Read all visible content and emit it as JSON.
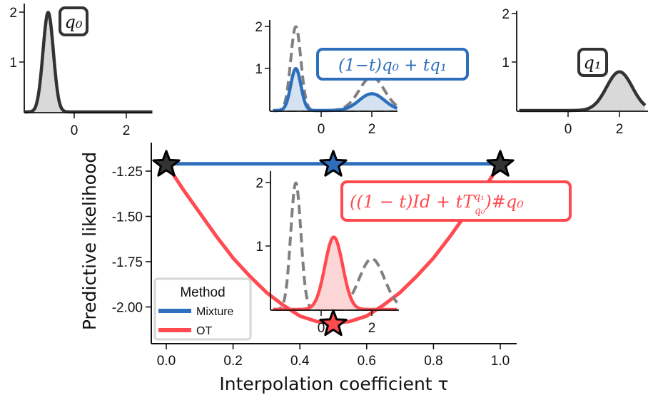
{
  "colors": {
    "mixture": "#2e6fbd",
    "ot": "#ff4a50",
    "dark": "#333333",
    "dashed": "#808080",
    "gray_fill": "#d9d9d9",
    "blue_fill": "#d5e2f1",
    "red_fill": "#fcd6d7"
  },
  "chart_data": [
    {
      "type": "line",
      "xlabel": "Interpolation coefficient τ",
      "ylabel": "Predictive likelihood",
      "xlim": [
        -0.04,
        1.05
      ],
      "ylim": [
        -2.2,
        -1.12
      ],
      "xticks": [
        "0.0",
        "0.2",
        "0.4",
        "0.6",
        "0.8",
        "1.0"
      ],
      "yticks": [
        "-1.25",
        "-1.50",
        "-1.75",
        "-2.00"
      ],
      "ytick_values": [
        -1.25,
        -1.5,
        -1.75,
        -2.0
      ],
      "grid": false,
      "legend": {
        "title": "Method",
        "placement": "bottom-left",
        "entries": [
          "Mixture",
          "OT"
        ]
      },
      "x": [
        0,
        0.05,
        0.1,
        0.15,
        0.2,
        0.25,
        0.3,
        0.35,
        0.4,
        0.45,
        0.5,
        0.55,
        0.6,
        0.65,
        0.7,
        0.75,
        0.8,
        0.85,
        0.9,
        0.95,
        1.0
      ],
      "series": [
        {
          "name": "Mixture",
          "values": [
            -1.21,
            -1.21,
            -1.21,
            -1.21,
            -1.21,
            -1.21,
            -1.21,
            -1.21,
            -1.21,
            -1.21,
            -1.21,
            -1.21,
            -1.21,
            -1.21,
            -1.21,
            -1.21,
            -1.21,
            -1.21,
            -1.21,
            -1.21,
            -1.21
          ]
        },
        {
          "name": "OT",
          "values": [
            -1.21,
            -1.35,
            -1.48,
            -1.61,
            -1.73,
            -1.83,
            -1.92,
            -1.99,
            -2.05,
            -2.08,
            -2.09,
            -2.08,
            -2.05,
            -1.99,
            -1.92,
            -1.83,
            -1.73,
            -1.61,
            -1.48,
            -1.35,
            -1.21
          ]
        }
      ],
      "star_markers": [
        {
          "x": 0,
          "y": -1.21,
          "color": "dark"
        },
        {
          "x": 0.5,
          "y": -1.21,
          "color": "mixture"
        },
        {
          "x": 1,
          "y": -1.21,
          "color": "dark"
        },
        {
          "x": 0.5,
          "y": -2.09,
          "color": "ot"
        }
      ]
    },
    {
      "type": "line",
      "inset": "q0",
      "label": "q₀",
      "xticks": [
        "0",
        "2"
      ],
      "yticks": [
        "1",
        "2"
      ],
      "xlim": [
        -1.9,
        3.0
      ],
      "ylim": [
        0,
        2.1
      ],
      "densities": [
        {
          "kind": "normal",
          "mean": -1.0,
          "std": 0.2,
          "weight": 1.0,
          "style": "solid",
          "color": "dark"
        }
      ]
    },
    {
      "type": "line",
      "inset": "mixture",
      "label": "(1−t)q₀ + tq₁",
      "xticks": [
        "0",
        "2"
      ],
      "yticks": [
        "1",
        "2"
      ],
      "xlim": [
        -1.9,
        3.0
      ],
      "ylim": [
        0,
        2.1
      ],
      "densities": [
        {
          "kind": "normal",
          "mean": -1.0,
          "std": 0.2,
          "weight": 1.0,
          "style": "dashed",
          "color": "dashed"
        },
        {
          "kind": "normal",
          "mean": 2.0,
          "std": 0.5,
          "weight": 1.0,
          "style": "dashed",
          "color": "dashed"
        },
        {
          "kind": "mixture",
          "components": [
            {
              "mean": -1.0,
              "std": 0.2,
              "weight": 0.5
            },
            {
              "mean": 2.0,
              "std": 0.5,
              "weight": 0.5
            }
          ],
          "style": "solid",
          "color": "mixture"
        }
      ]
    },
    {
      "type": "line",
      "inset": "q1",
      "label": "q₁",
      "xticks": [
        "0",
        "2"
      ],
      "yticks": [
        "1",
        "2"
      ],
      "xlim": [
        -1.9,
        3.0
      ],
      "ylim": [
        0,
        2.1
      ],
      "densities": [
        {
          "kind": "normal",
          "mean": 2.0,
          "std": 0.5,
          "weight": 1.0,
          "style": "solid",
          "color": "dark"
        }
      ]
    },
    {
      "type": "line",
      "inset": "ot",
      "label": {
        "main": "((1 − t)Id + tT",
        "sup": "q₁",
        "sub": "q₀",
        "tail": ")#q₀"
      },
      "xticks": [
        "0",
        "2"
      ],
      "yticks": [
        "1",
        "2"
      ],
      "xlim": [
        -1.9,
        3.0
      ],
      "ylim": [
        0,
        2.1
      ],
      "densities": [
        {
          "kind": "normal",
          "mean": -1.0,
          "std": 0.2,
          "weight": 1.0,
          "style": "dashed",
          "color": "dashed"
        },
        {
          "kind": "normal",
          "mean": 2.0,
          "std": 0.5,
          "weight": 1.0,
          "style": "dashed",
          "color": "dashed"
        },
        {
          "kind": "normal",
          "mean": 0.5,
          "std": 0.35,
          "weight": 1.0,
          "style": "solid",
          "color": "ot"
        }
      ]
    }
  ]
}
